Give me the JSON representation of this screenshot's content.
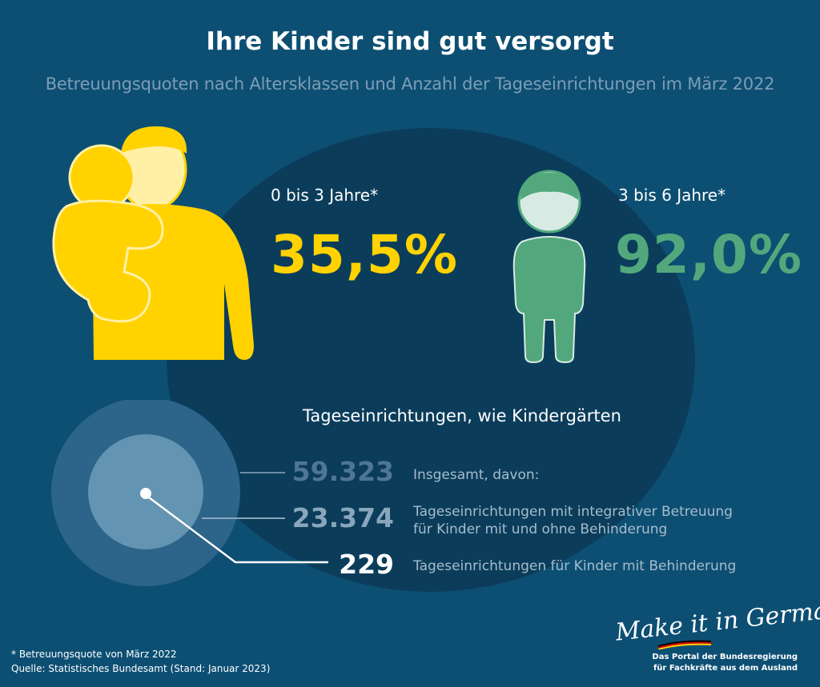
{
  "header": {
    "title": "Ihre Kinder sind gut versorgt",
    "subtitle": "Betreuungsquoten nach Altersklassen und Anzahl der Tageseinrichtungen im März 2022"
  },
  "colors": {
    "background": "#0d4f73",
    "circle": "#0b3d5b",
    "yellow": "#ffd200",
    "green": "#52a87c",
    "muted_blue": "#7d9db6"
  },
  "age_groups": [
    {
      "label": "0 bis 3 Jahre*",
      "value": "35,5%",
      "color": "#ffd200",
      "icon": "parent-with-child-icon"
    },
    {
      "label": "3 bis 6 Jahre*",
      "value": "92,0%",
      "color": "#52a87c",
      "icon": "child-icon"
    }
  ],
  "facilities": {
    "title": "Tageseinrichtungen, wie Kindergärten",
    "rows": [
      {
        "value": "59.323",
        "label_lines": [
          "Insgesamt, davon:"
        ]
      },
      {
        "value": "23.374",
        "label_lines": [
          "Tageseinrichtungen mit integrativer Betreuung",
          "für Kinder mit und ohne Behinderung"
        ]
      },
      {
        "value": "229",
        "label_lines": [
          "Tageseinrichtungen für Kinder mit Behinderung"
        ]
      }
    ]
  },
  "chart_data": {
    "type": "table",
    "title": "Ihre Kinder sind gut versorgt",
    "subtitle": "Betreuungsquoten nach Altersklassen und Anzahl der Tageseinrichtungen im März 2022",
    "betreuungsquoten": [
      {
        "category": "0 bis 3 Jahre*",
        "value": 35.5,
        "unit": "%"
      },
      {
        "category": "3 bis 6 Jahre*",
        "value": 92.0,
        "unit": "%"
      }
    ],
    "tageseinrichtungen": [
      {
        "category": "Insgesamt, davon:",
        "value": 59323
      },
      {
        "category": "Tageseinrichtungen mit integrativer Betreuung für Kinder mit und ohne Behinderung",
        "value": 23374
      },
      {
        "category": "Tageseinrichtungen für Kinder mit Behinderung",
        "value": 229
      }
    ]
  },
  "footer": {
    "note": "* Betreuungsquote von März 2022",
    "source": "Quelle: Statistisches Bundesamt (Stand: Januar 2023)"
  },
  "logo": {
    "script": "Make it in Germany",
    "line1": "Das Portal der Bundesregierung",
    "line2": "für Fachkräfte aus dem Ausland"
  }
}
